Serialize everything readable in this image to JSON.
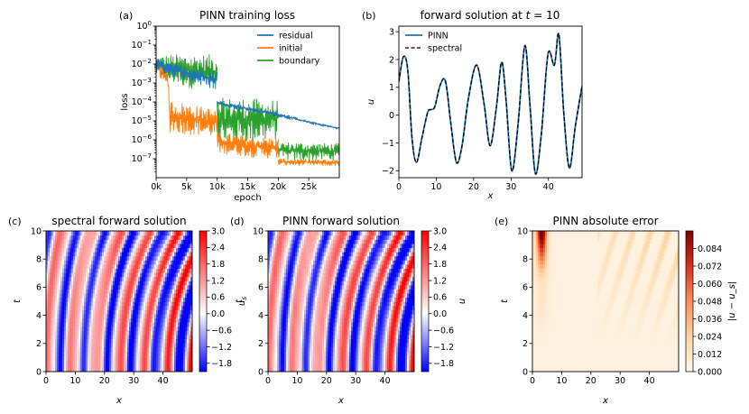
{
  "chart_data": [
    {
      "id": "a",
      "type": "line",
      "panel_label": "(a)",
      "title": "PINN training loss",
      "xlabel": "epoch",
      "ylabel": "loss",
      "yscale": "log",
      "xlim": [
        0,
        30000
      ],
      "ylim_exp": [
        -8,
        0
      ],
      "xticks": [
        0,
        5000,
        10000,
        15000,
        20000,
        25000
      ],
      "xtick_labels": [
        "0k",
        "5k",
        "10k",
        "15k",
        "20k",
        "25k"
      ],
      "yticks_exp": [
        -7,
        -6,
        -5,
        -4,
        -3,
        -2,
        -1,
        0
      ],
      "ytick_labels": [
        "10^-7",
        "10^-6",
        "10^-5",
        "10^-4",
        "10^-3",
        "10^-2",
        "10^-1",
        "10^0"
      ],
      "legend": [
        "residual",
        "initial",
        "boundary"
      ],
      "legend_position": "top-right",
      "colors": {
        "residual": "#1f77b4",
        "initial": "#ff7f0e",
        "boundary": "#2ca02c"
      },
      "series": [
        {
          "name": "residual",
          "bands": [
            {
              "x": [
                0,
                2000,
                5000,
                10000
              ],
              "lo": [
                -2.3,
                -2.6,
                -2.9,
                -3.4
              ],
              "hi": [
                -1.7,
                -1.9,
                -2.1,
                -2.3
              ]
            },
            {
              "x": [
                10000,
                15000,
                20000,
                25000,
                30000
              ],
              "lo": [
                -4.2,
                -4.5,
                -4.8,
                -5.15,
                -5.45
              ],
              "hi": [
                -3.9,
                -4.25,
                -4.55,
                -5.0,
                -5.35
              ]
            }
          ]
        },
        {
          "name": "initial",
          "bands": [
            {
              "x": [
                0,
                2000,
                2200,
                10000
              ],
              "lo": [
                -2.4,
                -3.4,
                -5.6,
                -5.9
              ],
              "hi": [
                -1.5,
                -2.5,
                -3.9,
                -4.4
              ]
            },
            {
              "x": [
                10000,
                15000,
                20000
              ],
              "lo": [
                -6.7,
                -6.9,
                -7.0
              ],
              "hi": [
                -5.6,
                -5.8,
                -5.9
              ]
            },
            {
              "x": [
                20000,
                30000
              ],
              "lo": [
                -7.35,
                -7.4
              ],
              "hi": [
                -7.0,
                -7.05
              ]
            }
          ]
        },
        {
          "name": "boundary",
          "bands": [
            {
              "x": [
                0,
                2000,
                10000
              ],
              "lo": [
                -2.6,
                -3.0,
                -3.6
              ],
              "hi": [
                -1.6,
                -1.5,
                -1.5
              ]
            },
            {
              "x": [
                10000,
                15000,
                20000
              ],
              "lo": [
                -6.3,
                -6.2,
                -6.0
              ],
              "hi": [
                -3.8,
                -3.8,
                -3.9
              ]
            },
            {
              "x": [
                20000,
                30000
              ],
              "lo": [
                -7.1,
                -7.1
              ],
              "hi": [
                -6.1,
                -6.2
              ]
            }
          ]
        }
      ]
    },
    {
      "id": "b",
      "type": "line",
      "panel_label": "(b)",
      "title": "forward solution at t = 10",
      "title_main": "forward solution at ",
      "title_var": "t",
      "title_rest": " = 10",
      "xlabel": "x",
      "ylabel": "u",
      "xlim": [
        0,
        49
      ],
      "ylim": [
        -2.25,
        3.2
      ],
      "xticks": [
        0,
        10,
        20,
        30,
        40
      ],
      "yticks": [
        -2,
        -1,
        0,
        1,
        2,
        3
      ],
      "legend": [
        "PINN",
        "spectral"
      ],
      "legend_position": "top-left",
      "colors": {
        "PINN": "#1f77b4",
        "spectral": "#000000"
      },
      "curve_points": [
        [
          0,
          1.2
        ],
        [
          1.2,
          2.1
        ],
        [
          2.4,
          1.6
        ],
        [
          3.5,
          -0.8
        ],
        [
          4.7,
          -1.7
        ],
        [
          6.2,
          -0.8
        ],
        [
          7.7,
          0.1
        ],
        [
          8.6,
          0.2
        ],
        [
          9.6,
          0.3
        ],
        [
          11.1,
          1.1
        ],
        [
          12.5,
          1.2
        ],
        [
          13.9,
          -0.3
        ],
        [
          15.4,
          -1.7
        ],
        [
          16.9,
          -1.1
        ],
        [
          18.6,
          0.6
        ],
        [
          20.8,
          1.8
        ],
        [
          22.8,
          0.4
        ],
        [
          24.4,
          -1.1
        ],
        [
          26.1,
          0.3
        ],
        [
          27.5,
          1.9
        ],
        [
          28.7,
          0.5
        ],
        [
          30.2,
          -2.0
        ],
        [
          31.9,
          -0.3
        ],
        [
          33.7,
          2.5
        ],
        [
          35.1,
          0.3
        ],
        [
          36.5,
          -2.1
        ],
        [
          38.1,
          -0.7
        ],
        [
          39.9,
          2.2
        ],
        [
          41.6,
          1.8
        ],
        [
          42.8,
          2.9
        ],
        [
          44.1,
          0.1
        ],
        [
          45.6,
          -1.9
        ],
        [
          47.2,
          -0.4
        ],
        [
          49,
          1.05
        ]
      ]
    },
    {
      "id": "c",
      "type": "heatmap",
      "panel_label": "(c)",
      "title": "spectral forward solution",
      "xlabel": "x",
      "ylabel": "t",
      "xlim": [
        0,
        50
      ],
      "ylim": [
        0,
        10
      ],
      "xticks": [
        0,
        10,
        20,
        30,
        40
      ],
      "yticks": [
        0,
        2,
        4,
        6,
        8,
        10
      ],
      "colorbar_label": "u_s",
      "cbar_var": "u",
      "cbar_sub": "s",
      "colorbar_range": [
        -2.1,
        3.0
      ],
      "colorbar_ticks": [
        "3.0",
        "2.4",
        "1.8",
        "1.2",
        "0.6",
        "0.0",
        "−0.6",
        "−1.2",
        "−1.8"
      ],
      "colormap": "bwr"
    },
    {
      "id": "d",
      "type": "heatmap",
      "panel_label": "(d)",
      "title": "PINN forward solution",
      "xlabel": "x",
      "ylabel": "t",
      "xlim": [
        0,
        50
      ],
      "ylim": [
        0,
        10
      ],
      "xticks": [
        0,
        10,
        20,
        30,
        40
      ],
      "yticks": [
        0,
        2,
        4,
        6,
        8,
        10
      ],
      "colorbar_label": "u",
      "cbar_var": "u",
      "cbar_sub": "",
      "colorbar_range": [
        -2.1,
        3.0
      ],
      "colorbar_ticks": [
        "3.0",
        "2.4",
        "1.8",
        "1.2",
        "0.6",
        "0.0",
        "−0.6",
        "−1.2",
        "−1.8"
      ],
      "colormap": "bwr"
    },
    {
      "id": "e",
      "type": "heatmap",
      "panel_label": "(e)",
      "title": "PINN absolute error",
      "xlabel": "x",
      "ylabel": "t",
      "xlim": [
        0,
        50
      ],
      "ylim": [
        0,
        10
      ],
      "xticks": [
        0,
        10,
        20,
        30,
        40
      ],
      "yticks": [
        0,
        2,
        4,
        6,
        8,
        10
      ],
      "colorbar_label": "|u − u_s|",
      "colorbar_range": [
        0,
        0.096
      ],
      "colorbar_ticks": [
        "0.084",
        "0.072",
        "0.060",
        "0.048",
        "0.036",
        "0.024",
        "0.012",
        "0.000"
      ],
      "colormap": "OrRd"
    }
  ]
}
